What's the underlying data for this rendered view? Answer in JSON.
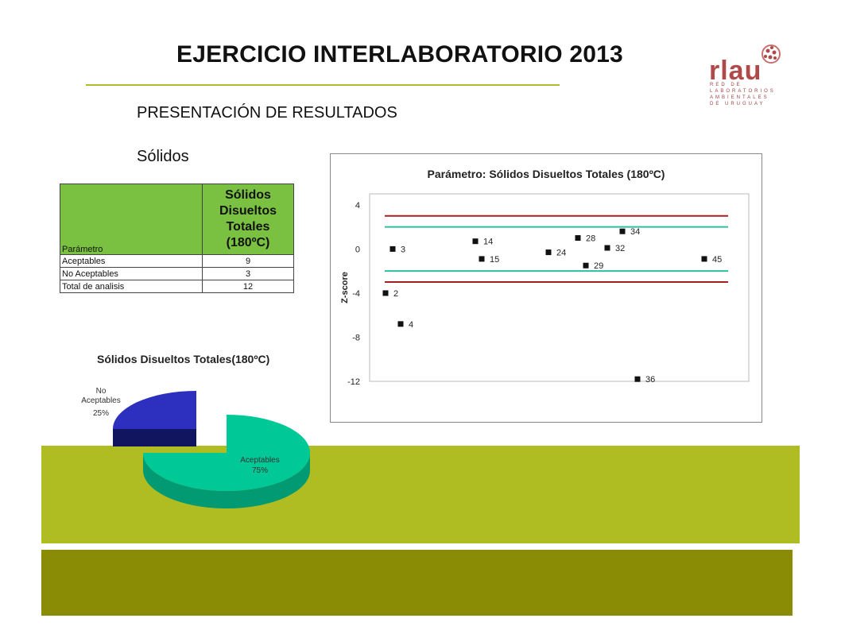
{
  "slide": {
    "title": "EJERCICIO INTERLABORATORIO 2013",
    "subtitle": "PRESENTACIÓN DE RESULTADOS",
    "section": "Sólidos"
  },
  "logo": {
    "name": "rlau",
    "tagline": "RED DE LABORATORIOS AMBIENTALES DE URUGUAY"
  },
  "table": {
    "header_left": "Parámetro",
    "header_right": "Sólidos Disueltos Totales (180ºC)",
    "rows": [
      {
        "label": "Aceptables",
        "value": "9"
      },
      {
        "label": "No Aceptables",
        "value": "3"
      },
      {
        "label": "Total de analisis",
        "value": "12"
      }
    ]
  },
  "chart_data": [
    {
      "type": "scatter",
      "title": "Parámetro: Sólidos Disueltos Totales (180ºC)",
      "xlabel": "",
      "ylabel": "Z-score",
      "ylim": [
        -12,
        5
      ],
      "yticks": [
        4,
        0,
        -4,
        -8,
        -12
      ],
      "grid": false,
      "points": [
        {
          "label": "2",
          "x": 1,
          "y": -4.0
        },
        {
          "label": "3",
          "x": 2,
          "y": 0.0
        },
        {
          "label": "4",
          "x": 3,
          "y": -6.8
        },
        {
          "label": "14",
          "x": 4,
          "y": 0.7
        },
        {
          "label": "15",
          "x": 5,
          "y": -0.9
        },
        {
          "label": "24",
          "x": 6,
          "y": -0.3
        },
        {
          "label": "28",
          "x": 7,
          "y": 1.0
        },
        {
          "label": "29",
          "x": 8,
          "y": -1.5
        },
        {
          "label": "32",
          "x": 9,
          "y": 0.1
        },
        {
          "label": "34",
          "x": 10,
          "y": 1.6
        },
        {
          "label": "36",
          "x": 11,
          "y": -11.8
        },
        {
          "label": "45",
          "x": 12,
          "y": -0.9
        }
      ],
      "reference_lines": [
        {
          "y": 3,
          "color": "#a32020"
        },
        {
          "y": 2,
          "color": "#2bbfa0"
        },
        {
          "y": -2,
          "color": "#2bbfa0"
        },
        {
          "y": -3,
          "color": "#a32020"
        }
      ]
    },
    {
      "type": "pie",
      "title": "Sólidos Disueltos Totales(180ºC)",
      "slices": [
        {
          "name": "Aceptables",
          "percent": "75%",
          "value": 75,
          "color": "#00c896"
        },
        {
          "name": "No Aceptables",
          "percent": "25%",
          "value": 25,
          "color": "#2d2fbe"
        }
      ]
    }
  ]
}
